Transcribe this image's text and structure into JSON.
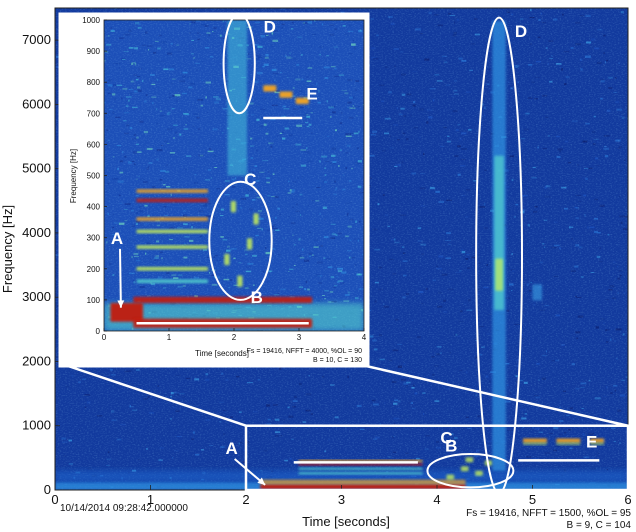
{
  "chart_data": [
    {
      "type": "heatmap",
      "kind": "spectrogram",
      "xlabel": "Time [seconds]",
      "ylabel": "Frequency [Hz]",
      "xlim": [
        0,
        6
      ],
      "ylim": [
        0,
        7500
      ],
      "xticks": [
        0,
        1,
        2,
        3,
        4,
        5,
        6
      ],
      "yticks": [
        0,
        1000,
        2000,
        3000,
        4000,
        5000,
        6000,
        7000
      ],
      "timestamp": "10/14/2014 09:28:42.000000",
      "params_line1": "Fs = 19416, NFFT = 1500, %OL = 95",
      "params_line2": "B = 9, C = 104",
      "colormap": [
        "#08125a",
        "#1b46b4",
        "#2f8fe0",
        "#54d3cf",
        "#c8f05a",
        "#f5a623",
        "#c21a0e"
      ],
      "zoom_region": {
        "x": [
          2,
          6
        ],
        "y": [
          0,
          1000
        ]
      },
      "annotations": [
        {
          "label": "A",
          "kind": "arrow",
          "text_at": [
            1.85,
            560
          ],
          "points_to": [
            2.2,
            80
          ]
        },
        {
          "label": "B",
          "kind": "line",
          "text_at": [
            4.15,
            600
          ],
          "from": [
            2.5,
            430
          ],
          "to": [
            3.8,
            430
          ]
        },
        {
          "label": "C",
          "kind": "ellipse",
          "text_at": [
            4.1,
            720
          ],
          "center": [
            4.35,
            300
          ],
          "radii": [
            0.45,
            260
          ]
        },
        {
          "label": "D",
          "kind": "ellipse",
          "text_at": [
            4.88,
            7050
          ],
          "center": [
            4.65,
            3650
          ],
          "radii": [
            0.24,
            3700
          ]
        },
        {
          "label": "E",
          "kind": "line",
          "text_at": [
            5.62,
            660
          ],
          "from": [
            4.85,
            460
          ],
          "to": [
            5.7,
            460
          ]
        }
      ]
    },
    {
      "type": "heatmap",
      "kind": "spectrogram-inset",
      "xlabel": "Time [seconds]",
      "ylabel": "Frequency [Hz]",
      "xlim": [
        0,
        4
      ],
      "ylim": [
        0,
        1000
      ],
      "xticks": [
        0,
        1,
        2,
        3,
        4
      ],
      "yticks": [
        0,
        100,
        200,
        300,
        400,
        500,
        600,
        700,
        800,
        900,
        1000
      ],
      "params_line1": "Fs = 19416, NFFT = 4000, %OL = 90",
      "params_line2": "B = 10, C = 130",
      "annotations": [
        {
          "label": "A",
          "kind": "arrow",
          "text_at": [
            0.2,
            280
          ],
          "points_to": [
            0.26,
            75
          ]
        },
        {
          "label": "B",
          "kind": "line",
          "text_at": [
            2.35,
            90
          ],
          "from": [
            0.5,
            25
          ],
          "to": [
            3.15,
            25
          ]
        },
        {
          "label": "C",
          "kind": "ellipse",
          "text_at": [
            2.25,
            470
          ],
          "center": [
            2.1,
            290
          ],
          "radii": [
            0.48,
            190
          ]
        },
        {
          "label": "D",
          "kind": "ellipse",
          "text_at": [
            2.55,
            960
          ],
          "center": [
            2.08,
            860
          ],
          "radii": [
            0.24,
            160
          ]
        },
        {
          "label": "E",
          "kind": "line",
          "text_at": [
            3.2,
            745
          ],
          "from": [
            2.45,
            685
          ],
          "to": [
            3.05,
            685
          ]
        }
      ]
    }
  ]
}
